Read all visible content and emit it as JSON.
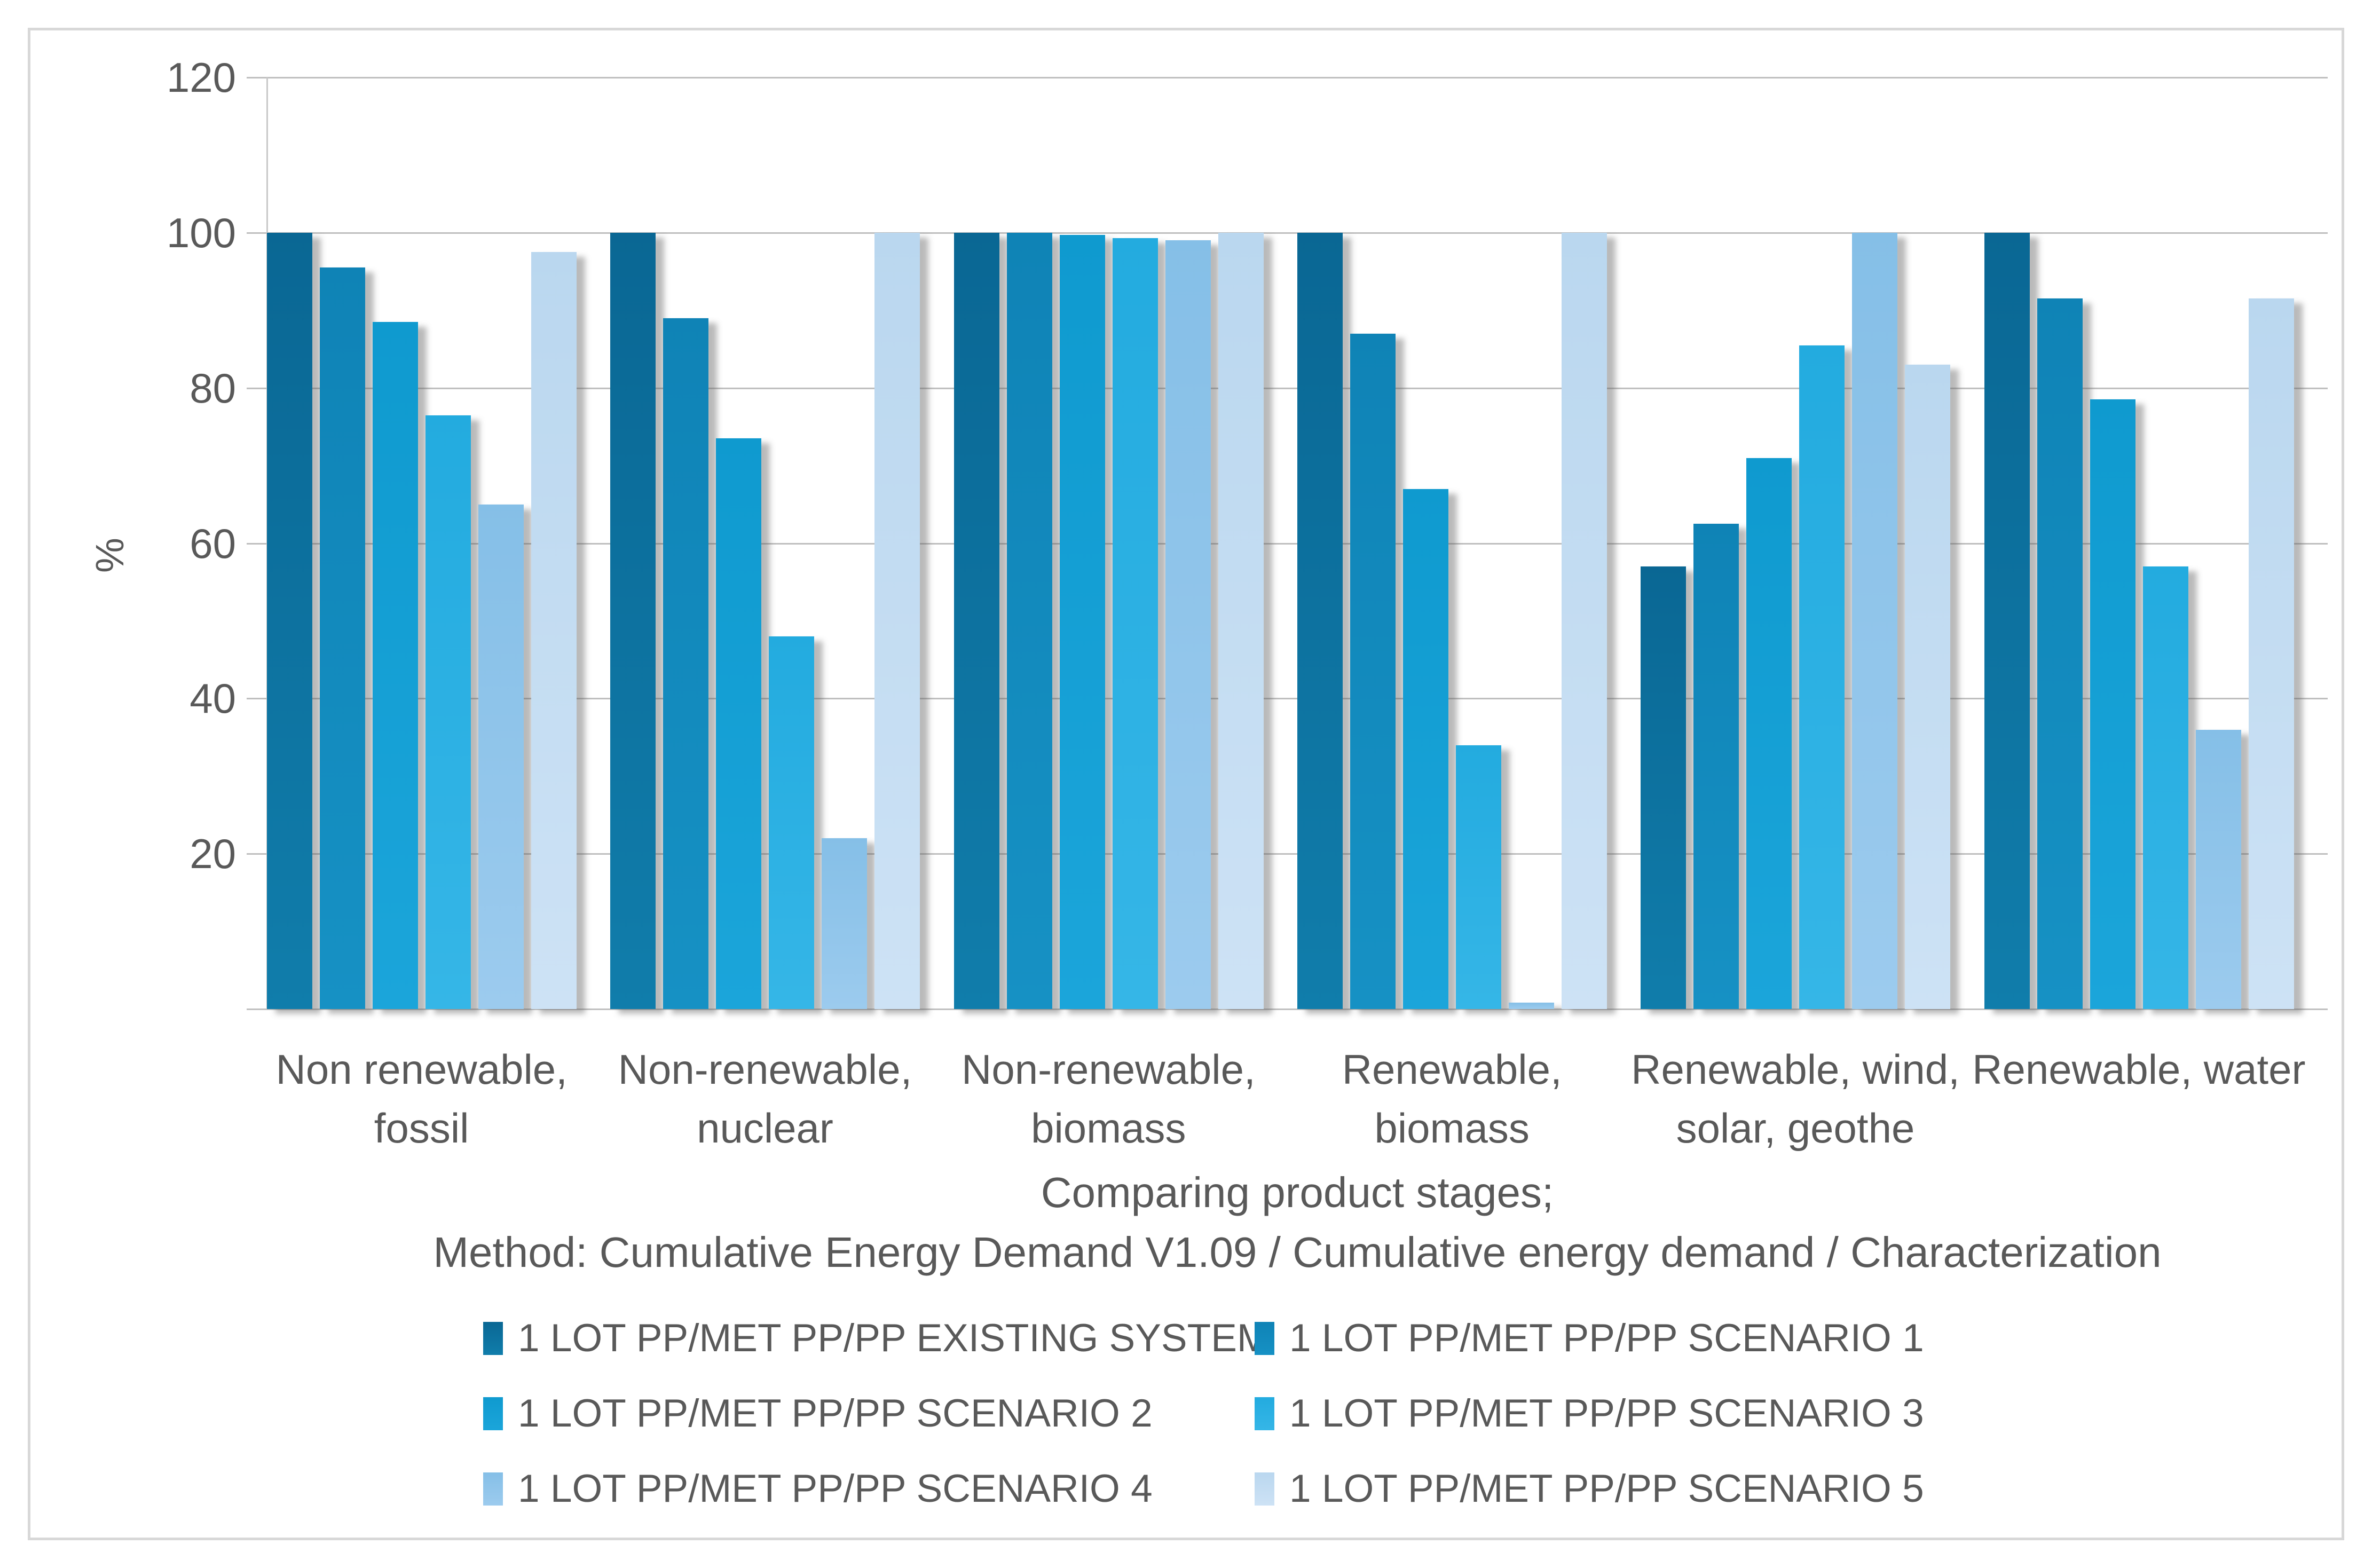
{
  "chart_data": {
    "type": "bar",
    "title": "",
    "ylabel": "%",
    "xlabel_line1": "Comparing product stages;",
    "xlabel_line2": "Method: Cumulative Energy Demand V1.09 / Cumulative energy demand / Characterization",
    "ylim": [
      0,
      120
    ],
    "yticks": [
      120,
      100,
      80,
      60,
      40,
      20
    ],
    "grid": true,
    "legend_position": "bottom",
    "categories": [
      {
        "line1": "Non renewable,",
        "line2": "fossil"
      },
      {
        "line1": "Non-renewable,",
        "line2": "nuclear"
      },
      {
        "line1": "Non-renewable,",
        "line2": "biomass"
      },
      {
        "line1": "Renewable,",
        "line2": "biomass"
      },
      {
        "line1": "Renewable, wind,",
        "line2": "solar, geothe"
      },
      {
        "line1": "Renewable, water",
        "line2": ""
      }
    ],
    "series": [
      {
        "name": "1 LOT PP/MET PP/PP EXISTING SYSTEM",
        "color_top": "#0a6794",
        "color_bottom": "#107dab",
        "values": [
          100,
          100,
          100,
          100,
          57,
          100
        ]
      },
      {
        "name": "1 LOT PP/MET PP/PP SCENARIO 1",
        "color_top": "#0f83b6",
        "color_bottom": "#1691c4",
        "values": [
          95.5,
          89,
          100,
          87,
          62.5,
          91.5
        ]
      },
      {
        "name": "1 LOT PP/MET PP/PP SCENARIO 2",
        "color_top": "#0f9acf",
        "color_bottom": "#1ba5da",
        "values": [
          88.5,
          73.5,
          99.7,
          67,
          71,
          78.5
        ]
      },
      {
        "name": "1 LOT PP/MET PP/PP SCENARIO 3",
        "color_top": "#23abdf",
        "color_bottom": "#35b6e7",
        "values": [
          76.5,
          48,
          99.3,
          34,
          85.5,
          57
        ]
      },
      {
        "name": "1 LOT PP/MET PP/PP SCENARIO 4",
        "color_top": "#85bfe7",
        "color_bottom": "#9ccbee",
        "values": [
          65,
          22,
          99,
          0.8,
          100,
          36
        ]
      },
      {
        "name": "1 LOT PP/MET PP/PP SCENARIO 5",
        "color_top": "#bad7ef",
        "color_bottom": "#cde2f5",
        "values": [
          97.5,
          100,
          100,
          100,
          83,
          91.5
        ]
      }
    ]
  },
  "colors": {
    "text": "#595959",
    "gridline": "#bfbfbf",
    "frame_border": "#d8d8d8",
    "background": "#ffffff"
  }
}
